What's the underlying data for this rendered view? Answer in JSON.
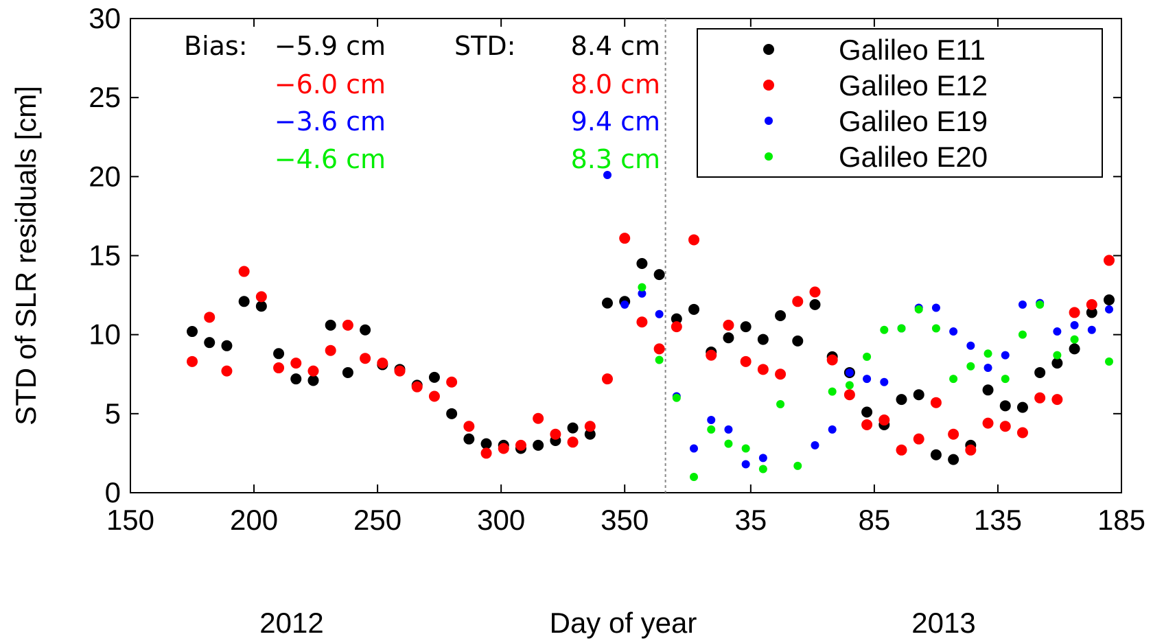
{
  "chart_data": {
    "type": "scatter",
    "title": "",
    "ylabel": "STD of SLR residuals [cm]",
    "xlabel": "Day of year",
    "year_labels": [
      "2012",
      "2013"
    ],
    "x_tick_labels": [
      "150",
      "200",
      "250",
      "300",
      "350",
      "35",
      "85",
      "135",
      "185"
    ],
    "y_ticks": [
      0,
      5,
      10,
      15,
      20,
      25,
      30
    ],
    "ylim": [
      0,
      30
    ],
    "grid": false,
    "legend_position": "top-right",
    "stats": {
      "bias_label": "Bias:",
      "std_label": "STD:",
      "bias_values": [
        "−5.9 cm",
        "−6.0 cm",
        "−3.6 cm",
        "−4.6 cm"
      ],
      "std_values": [
        "8.4 cm",
        "8.0 cm",
        "9.4 cm",
        "8.3 cm"
      ]
    },
    "series": [
      {
        "name": "Galileo E11",
        "color": "#000000",
        "x": [
          "2012-175",
          "2012-182",
          "2012-189",
          "2012-196",
          "2012-203",
          "2012-210",
          "2012-217",
          "2012-224",
          "2012-231",
          "2012-238",
          "2012-245",
          "2012-252",
          "2012-259",
          "2012-266",
          "2012-273",
          "2012-280",
          "2012-287",
          "2012-294",
          "2012-301",
          "2012-308",
          "2012-315",
          "2012-322",
          "2012-329",
          "2012-336",
          "2012-343",
          "2012-350",
          "2012-357",
          "2012-364",
          "2013-5",
          "2013-12",
          "2013-19",
          "2013-26",
          "2013-33",
          "2013-40",
          "2013-47",
          "2013-54",
          "2013-61",
          "2013-68",
          "2013-75",
          "2013-82",
          "2013-89",
          "2013-96",
          "2013-103",
          "2013-110",
          "2013-117",
          "2013-124",
          "2013-131",
          "2013-138",
          "2013-145",
          "2013-152",
          "2013-159",
          "2013-166",
          "2013-173",
          "2013-180"
        ],
        "y": [
          10.2,
          9.5,
          9.3,
          12.1,
          11.8,
          8.8,
          7.2,
          7.1,
          10.6,
          7.6,
          10.3,
          8.1,
          7.8,
          6.8,
          7.3,
          5.0,
          3.4,
          3.1,
          3.0,
          2.8,
          3.0,
          3.3,
          4.1,
          3.7,
          12.0,
          12.1,
          14.5,
          13.8,
          11.0,
          11.6,
          8.9,
          9.8,
          10.5,
          9.7,
          11.2,
          9.6,
          11.9,
          8.6,
          7.6,
          5.1,
          4.3,
          5.9,
          6.2,
          2.4,
          2.1,
          3.0,
          6.5,
          5.5,
          5.4,
          7.6,
          8.2,
          9.1,
          11.4,
          12.2
        ]
      },
      {
        "name": "Galileo E12",
        "color": "#ff0000",
        "x": [
          "2012-175",
          "2012-182",
          "2012-189",
          "2012-196",
          "2012-203",
          "2012-210",
          "2012-217",
          "2012-224",
          "2012-231",
          "2012-238",
          "2012-245",
          "2012-252",
          "2012-259",
          "2012-266",
          "2012-273",
          "2012-280",
          "2012-287",
          "2012-294",
          "2012-301",
          "2012-308",
          "2012-315",
          "2012-322",
          "2012-329",
          "2012-336",
          "2012-343",
          "2012-350",
          "2012-357",
          "2012-364",
          "2013-5",
          "2013-12",
          "2013-19",
          "2013-26",
          "2013-33",
          "2013-40",
          "2013-47",
          "2013-54",
          "2013-61",
          "2013-68",
          "2013-75",
          "2013-82",
          "2013-89",
          "2013-96",
          "2013-103",
          "2013-110",
          "2013-117",
          "2013-124",
          "2013-131",
          "2013-138",
          "2013-145",
          "2013-152",
          "2013-159",
          "2013-166",
          "2013-173",
          "2013-180"
        ],
        "y": [
          8.3,
          11.1,
          7.7,
          14.0,
          12.4,
          7.9,
          8.2,
          7.7,
          9.0,
          10.6,
          8.5,
          8.2,
          7.7,
          6.7,
          6.1,
          7.0,
          4.2,
          2.5,
          2.8,
          3.0,
          4.7,
          3.7,
          3.2,
          4.2,
          7.2,
          16.1,
          10.8,
          9.1,
          10.5,
          16.0,
          8.7,
          10.6,
          8.3,
          7.8,
          7.5,
          12.1,
          12.7,
          8.4,
          6.2,
          4.3,
          4.6,
          2.7,
          3.4,
          5.7,
          3.7,
          2.7,
          4.4,
          4.2,
          3.8,
          6.0,
          5.9,
          11.4,
          11.9,
          14.7
        ]
      },
      {
        "name": "Galileo E19",
        "color": "#0000ff",
        "x": [
          "2012-343",
          "2012-350",
          "2012-357",
          "2012-364",
          "2013-5",
          "2013-12",
          "2013-19",
          "2013-26",
          "2013-33",
          "2013-40",
          "2013-61",
          "2013-68",
          "2013-75",
          "2013-82",
          "2013-89",
          "2013-96",
          "2013-103",
          "2013-110",
          "2013-117",
          "2013-124",
          "2013-131",
          "2013-138",
          "2013-145",
          "2013-152",
          "2013-159",
          "2013-166",
          "2013-173",
          "2013-180"
        ],
        "y": [
          20.1,
          11.9,
          12.6,
          11.3,
          6.1,
          2.8,
          4.6,
          4.0,
          1.8,
          2.2,
          3.0,
          4.0,
          7.6,
          7.2,
          7.0,
          10.4,
          11.7,
          11.7,
          10.2,
          9.3,
          7.9,
          8.7,
          11.9,
          12.0,
          10.2,
          10.6,
          10.3,
          11.6
        ]
      },
      {
        "name": "Galileo E20",
        "color": "#00ee00",
        "x": [
          "2012-357",
          "2012-364",
          "2013-5",
          "2013-12",
          "2013-19",
          "2013-26",
          "2013-33",
          "2013-40",
          "2013-47",
          "2013-54",
          "2013-68",
          "2013-75",
          "2013-82",
          "2013-89",
          "2013-96",
          "2013-103",
          "2013-110",
          "2013-117",
          "2013-124",
          "2013-131",
          "2013-138",
          "2013-145",
          "2013-152",
          "2013-159",
          "2013-166",
          "2013-180"
        ],
        "y": [
          13.0,
          8.4,
          6.0,
          1.0,
          4.0,
          3.1,
          2.8,
          1.5,
          5.6,
          1.7,
          6.4,
          6.8,
          8.6,
          10.3,
          10.4,
          11.6,
          10.4,
          7.2,
          8.0,
          8.8,
          7.2,
          10.0,
          11.9,
          8.7,
          9.7,
          8.3
        ]
      }
    ]
  }
}
